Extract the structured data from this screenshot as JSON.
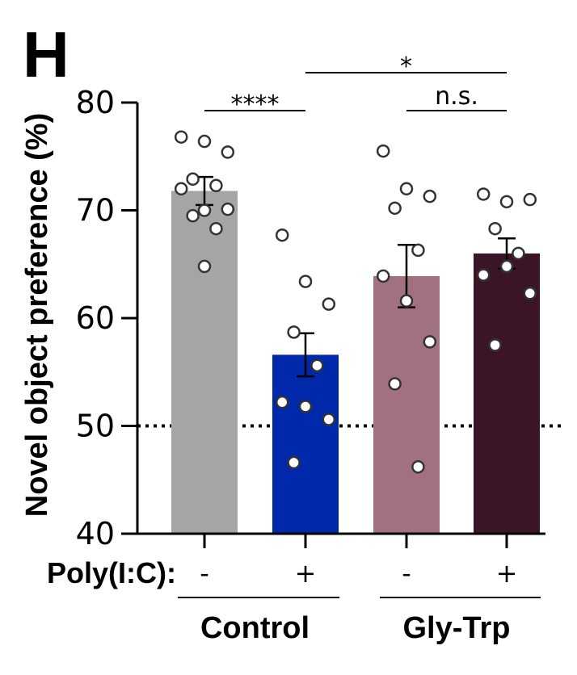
{
  "chart_data": {
    "type": "bar",
    "panel_label": "H",
    "ylabel": "Novel object preference (%)",
    "ylim": [
      40,
      80
    ],
    "yticks": [
      "40",
      "50",
      "60",
      "70",
      "80"
    ],
    "reference_line": 50,
    "row_label": "Poly(I:C):",
    "categories": [
      "-",
      "+",
      "-",
      "+"
    ],
    "groups": [
      {
        "label": "Control",
        "categories": [
          0,
          1
        ]
      },
      {
        "label": "Gly-Trp",
        "categories": [
          2,
          3
        ]
      }
    ],
    "bars": [
      {
        "value": 71.8,
        "sem": 1.3,
        "color": "#a5a6a3",
        "points": [
          76.8,
          76.4,
          75.4,
          72.9,
          72.3,
          72.0,
          70.0,
          70.1,
          69.5,
          68.3,
          64.8
        ]
      },
      {
        "value": 56.6,
        "sem": 2.0,
        "color": "#0028aa",
        "points": [
          67.7,
          63.4,
          61.3,
          58.7,
          55.6,
          52.2,
          51.8,
          50.6,
          46.6
        ]
      },
      {
        "value": 63.9,
        "sem": 2.9,
        "color": "#a2717f",
        "points": [
          75.5,
          72.0,
          71.3,
          70.2,
          66.3,
          63.9,
          61.6,
          57.8,
          53.9,
          46.2
        ]
      },
      {
        "value": 66.0,
        "sem": 1.4,
        "color": "#3c1428",
        "points": [
          71.5,
          70.8,
          71.0,
          68.3,
          66.0,
          64.0,
          64.8,
          62.3,
          57.5
        ]
      }
    ],
    "significance": [
      {
        "from": 0,
        "to": 1,
        "label": "****",
        "level": 0
      },
      {
        "from": 2,
        "to": 3,
        "label": "n.s.",
        "level": 0
      },
      {
        "from": 1,
        "to": 3,
        "label": "*",
        "level": 1
      }
    ]
  }
}
